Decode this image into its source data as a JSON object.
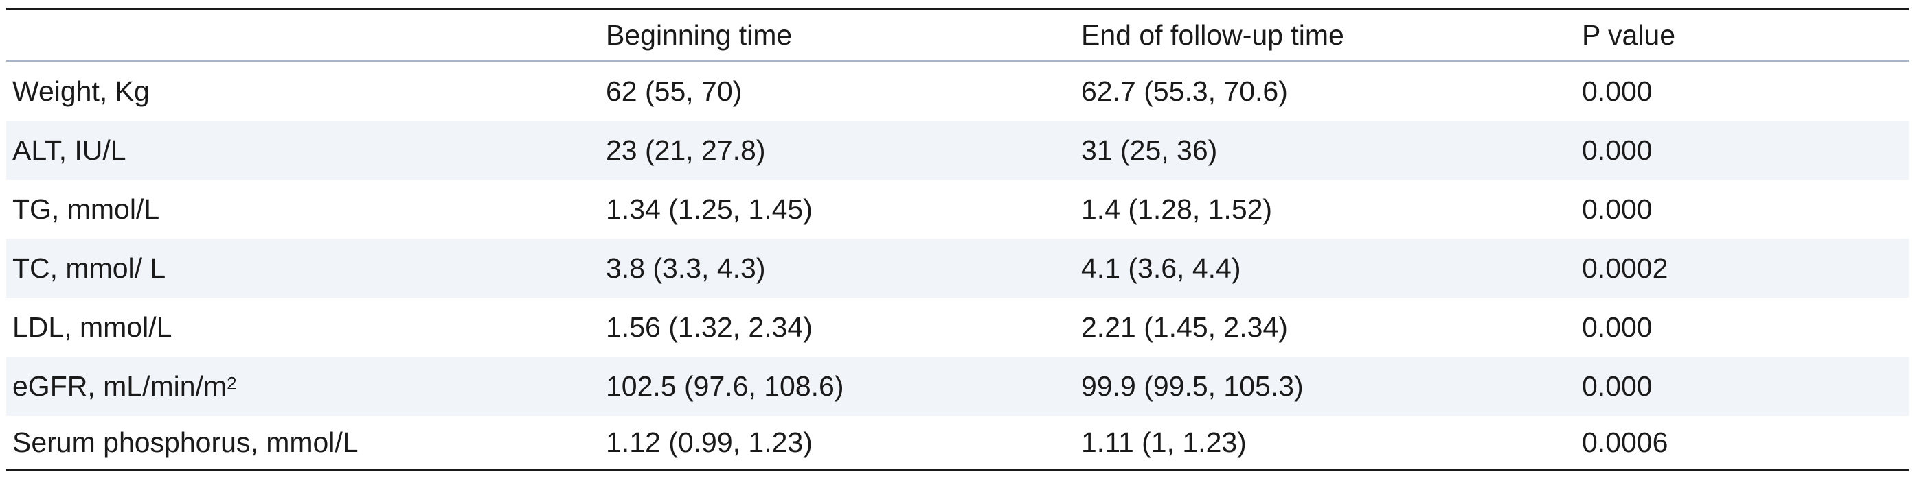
{
  "table": {
    "headers": [
      "",
      "Beginning time",
      "End of follow-up time",
      "P value"
    ],
    "rows": [
      {
        "label": "Weight, Kg",
        "label_sup": "",
        "begin": "62 (55, 70)",
        "end": "62.7 (55.3, 70.6)",
        "p": "0.000"
      },
      {
        "label": "ALT, IU/L",
        "label_sup": "",
        "begin": "23 (21, 27.8)",
        "end": "31 (25, 36)",
        "p": "0.000"
      },
      {
        "label": "TG, mmol/L",
        "label_sup": "",
        "begin": "1.34 (1.25, 1.45)",
        "end": "1.4 (1.28, 1.52)",
        "p": "0.000"
      },
      {
        "label": "TC, mmol/ L",
        "label_sup": "",
        "begin": "3.8 (3.3, 4.3)",
        "end": "4.1 (3.6, 4.4)",
        "p": "0.0002"
      },
      {
        "label": "LDL, mmol/L",
        "label_sup": "",
        "begin": "1.56 (1.32, 2.34)",
        "end": "2.21 (1.45, 2.34)",
        "p": "0.000"
      },
      {
        "label": "eGFR, mL/min/m",
        "label_sup": "2",
        "begin": "102.5 (97.6, 108.6)",
        "end": "99.9 (99.5, 105.3)",
        "p": "0.000"
      },
      {
        "label": "Serum phosphorus, mmol/L",
        "label_sup": "",
        "begin": "1.12 (0.99, 1.23)",
        "end": "1.11 (1, 1.23)",
        "p": "0.0006"
      }
    ]
  }
}
